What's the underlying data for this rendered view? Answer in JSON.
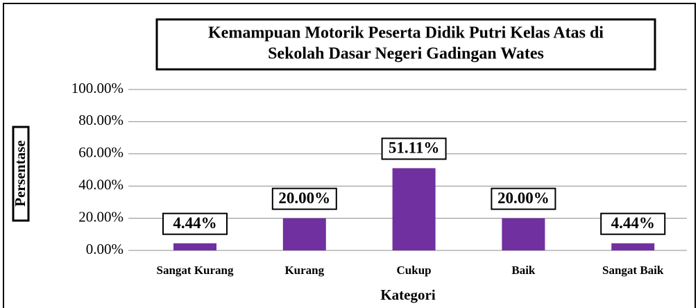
{
  "chart_data": {
    "type": "bar",
    "title": [
      "Kemampuan Motorik Peserta Didik Putri Kelas Atas di",
      "Sekolah Dasar Negeri Gadingan Wates"
    ],
    "x_label": "Kategori",
    "y_label": "Persentase",
    "categories": [
      "Sangat Kurang",
      "Kurang",
      "Cukup",
      "Baik",
      "Sangat Baik"
    ],
    "values": [
      4.44,
      20.0,
      51.11,
      20.0,
      4.44
    ],
    "value_labels": [
      "4.44%",
      "20.00%",
      "51.11%",
      "20.00%",
      "4.44%"
    ],
    "color": "#7030a0",
    "ylim": [
      0,
      100
    ],
    "yticks": [
      {
        "value": 0,
        "label": "0.00%"
      },
      {
        "value": 20,
        "label": "20.00%"
      },
      {
        "value": 40,
        "label": "40.00%"
      },
      {
        "value": 60,
        "label": "60.00%"
      },
      {
        "value": 80,
        "label": "80.00%"
      },
      {
        "value": 100,
        "label": "100.00%"
      }
    ],
    "grid": true
  }
}
